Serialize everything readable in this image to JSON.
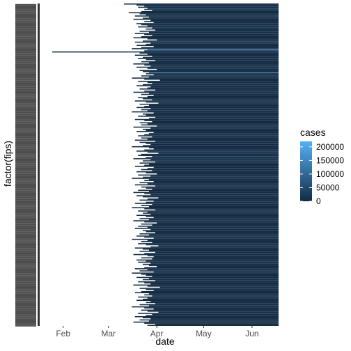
{
  "chart_data": {
    "type": "heatmap",
    "title": "",
    "xlabel": "date",
    "ylabel": "factor(fips)",
    "x_ticks": [
      "Feb",
      "Mar",
      "Apr",
      "May",
      "Jun"
    ],
    "x_tick_dates": [
      "2020-02-01",
      "2020-03-01",
      "2020-04-01",
      "2020-05-01",
      "2020-06-01"
    ],
    "xlim": [
      "2020-01-21",
      "2020-06-18"
    ],
    "grid": false,
    "legend": {
      "title": "cases",
      "placement": "right",
      "scale": "continuous",
      "labels": [
        "200000",
        "150000",
        "100000",
        "50000",
        "0"
      ],
      "breaks": [
        200000,
        150000,
        100000,
        50000,
        0
      ],
      "limits": [
        0,
        220000
      ],
      "low_color": "#132b43",
      "high_color": "#56b1f7"
    },
    "rows_start_dates": [
      "2020-03-11",
      "2020-03-19",
      "2020-03-24",
      "2020-03-20",
      "2020-03-26",
      "2020-03-16",
      "2020-03-29",
      "2020-03-22",
      "2020-03-14",
      "2020-03-21",
      "2020-03-25",
      "2020-03-18",
      "2020-03-27",
      "2020-03-23",
      "2020-03-17",
      "2020-03-28",
      "2020-03-24",
      "2020-03-30",
      "2020-03-19",
      "2020-03-22",
      "2020-03-26",
      "2020-03-20",
      "2020-03-15",
      "2020-03-25",
      "2020-03-31",
      "2020-03-21",
      "2020-03-27",
      "2020-03-18",
      "2020-03-24",
      "2020-03-29",
      "2020-03-22",
      "2020-03-17",
      "2020-03-26",
      "2020-04-01",
      "2020-03-23",
      "2020-03-20",
      "2020-03-28",
      "2020-03-25",
      "2020-03-19",
      "2020-03-30",
      "2020-03-22",
      "2020-03-16",
      "2020-03-27",
      "2020-03-24",
      "2020-04-02",
      "2020-03-21",
      "2020-03-26",
      "2020-03-18",
      "2020-03-29",
      "2020-03-23",
      "2020-03-20",
      "2020-03-25",
      "2020-03-31",
      "2020-03-22",
      "2020-03-27",
      "2020-03-17",
      "2020-03-24",
      "2020-03-28",
      "2020-03-19",
      "2020-03-26",
      "2020-04-01",
      "2020-03-21",
      "2020-03-23",
      "2020-03-18",
      "2020-03-25",
      "2020-03-30",
      "2020-03-22",
      "2020-03-27",
      "2020-03-16",
      "2020-03-24",
      "2020-04-03",
      "2020-03-20",
      "2020-03-26",
      "2020-03-29",
      "2020-03-23",
      "2020-03-19",
      "2020-03-28",
      "2020-03-25",
      "2020-03-21",
      "2020-03-31",
      "2020-03-24",
      "2020-03-17",
      "2020-03-27",
      "2020-03-22",
      "2020-03-30",
      "2020-03-26",
      "2020-03-20",
      "2020-03-23",
      "2020-03-29",
      "2020-03-18",
      "2020-03-25",
      "2020-04-02",
      "2020-03-21",
      "2020-03-27",
      "2020-03-24",
      "2020-03-19",
      "2020-03-28",
      "2020-03-22",
      "2020-03-26",
      "2020-03-16",
      "2020-03-30",
      "2020-03-23",
      "2020-03-25",
      "2020-03-20",
      "2020-03-31",
      "2020-03-27",
      "2020-03-18",
      "2020-03-24",
      "2020-03-29",
      "2020-03-21",
      "2020-03-26",
      "2020-03-22",
      "2020-04-01",
      "2020-03-17",
      "2020-03-28",
      "2020-03-23",
      "2020-03-25",
      "2020-03-19",
      "2020-03-30",
      "2020-03-27",
      "2020-03-24",
      "2020-03-20",
      "2020-03-29",
      "2020-03-22",
      "2020-03-26",
      "2020-03-18",
      "2020-03-31",
      "2020-03-21",
      "2020-03-25",
      "2020-03-28",
      "2020-03-23",
      "2020-03-16",
      "2020-03-27",
      "2020-03-30",
      "2020-03-24",
      "2020-03-19",
      "2020-03-26",
      "2020-04-02",
      "2020-03-22",
      "2020-03-20",
      "2020-03-29",
      "2020-03-25",
      "2020-03-17",
      "2020-03-28",
      "2020-03-23",
      "2020-03-31",
      "2020-03-21",
      "2020-03-27",
      "2020-03-24",
      "2020-03-18",
      "2020-03-30",
      "2020-03-26",
      "2020-03-22",
      "2020-03-29",
      "2020-03-19",
      "2020-03-25",
      "2020-04-01",
      "2020-03-20",
      "2020-03-28",
      "2020-03-23",
      "2020-03-16",
      "2020-03-27",
      "2020-03-24",
      "2020-03-30",
      "2020-03-21",
      "2020-03-26",
      "2020-03-18",
      "2020-03-31",
      "2020-03-22",
      "2020-03-25",
      "2020-03-29",
      "2020-03-20",
      "2020-03-27",
      "2020-03-17",
      "2020-03-24",
      "2020-03-28",
      "2020-03-19",
      "2020-03-23",
      "2020-04-02",
      "2020-03-26",
      "2020-03-21",
      "2020-03-30",
      "2020-03-25",
      "2020-03-18",
      "2020-03-29",
      "2020-03-22",
      "2020-03-27",
      "2020-03-16",
      "2020-03-24",
      "2020-03-31",
      "2020-03-20",
      "2020-03-26",
      "2020-03-23",
      "2020-03-28",
      "2020-03-19",
      "2020-03-25",
      "2020-03-30",
      "2020-03-21",
      "2020-03-27",
      "2020-03-17",
      "2020-03-24",
      "2020-04-01",
      "2020-03-22",
      "2020-03-29",
      "2020-03-20",
      "2020-03-26",
      "2020-03-18",
      "2020-03-28",
      "2020-03-23",
      "2020-03-25",
      "2020-03-31",
      "2020-03-21",
      "2020-03-27",
      "2020-03-19",
      "2020-03-24",
      "2020-03-30",
      "2020-03-16",
      "2020-03-26",
      "2020-03-22",
      "2020-03-29",
      "2020-03-20",
      "2020-03-25",
      "2020-04-02",
      "2020-03-28",
      "2020-03-18",
      "2020-03-23",
      "2020-03-27",
      "2020-03-21",
      "2020-03-31",
      "2020-03-24",
      "2020-03-17",
      "2020-03-26",
      "2020-03-30",
      "2020-03-22",
      "2020-03-29",
      "2020-03-19",
      "2020-03-25",
      "2020-03-20",
      "2020-03-28",
      "2020-03-23",
      "2020-03-27",
      "2020-04-01",
      "2020-03-24",
      "2020-03-18",
      "2020-03-26",
      "2020-03-21",
      "2020-03-30",
      "2020-03-16",
      "2020-03-22",
      "2020-03-25",
      "2020-03-29",
      "2020-03-19",
      "2020-03-27",
      "2020-03-23",
      "2020-03-31",
      "2020-03-20",
      "2020-03-24",
      "2020-03-28",
      "2020-03-17",
      "2020-03-26",
      "2020-04-03",
      "2020-03-21",
      "2020-03-25",
      "2020-03-30",
      "2020-03-22",
      "2020-03-18",
      "2020-03-27",
      "2020-03-24",
      "2020-03-29",
      "2020-03-20",
      "2020-03-26",
      "2020-03-23",
      "2020-03-19",
      "2020-03-28",
      "2020-03-25",
      "2020-03-31",
      "2020-03-21",
      "2020-03-27",
      "2020-03-16",
      "2020-03-24",
      "2020-03-30",
      "2020-03-22",
      "2020-03-26",
      "2020-04-02",
      "2020-03-20",
      "2020-03-29",
      "2020-03-25",
      "2020-03-18",
      "2020-03-23",
      "2020-03-28",
      "2020-03-21",
      "2020-03-27",
      "2020-03-17",
      "2020-03-24",
      "2020-03-31",
      "2020-03-26"
    ],
    "highlight_rows": [
      {
        "row": 44,
        "start": "2020-01-25",
        "cases": 6000
      },
      {
        "row": 42,
        "start": "2020-03-26",
        "cases": 140000
      },
      {
        "row": 63,
        "start": "2020-03-27",
        "cases": 130000
      },
      {
        "row": 140,
        "start": "2020-03-29",
        "cases": 60000
      },
      {
        "row": 5,
        "start": "2020-03-24",
        "cases": 35000
      },
      {
        "row": 22,
        "start": "2020-03-29",
        "cases": 30000
      },
      {
        "row": 92,
        "start": "2020-03-21",
        "cases": 25000
      },
      {
        "row": 35,
        "start": "2020-03-18",
        "cases": 25000
      },
      {
        "row": 77,
        "start": "2020-03-26",
        "cases": 20000
      }
    ],
    "base_cases": 1500
  }
}
